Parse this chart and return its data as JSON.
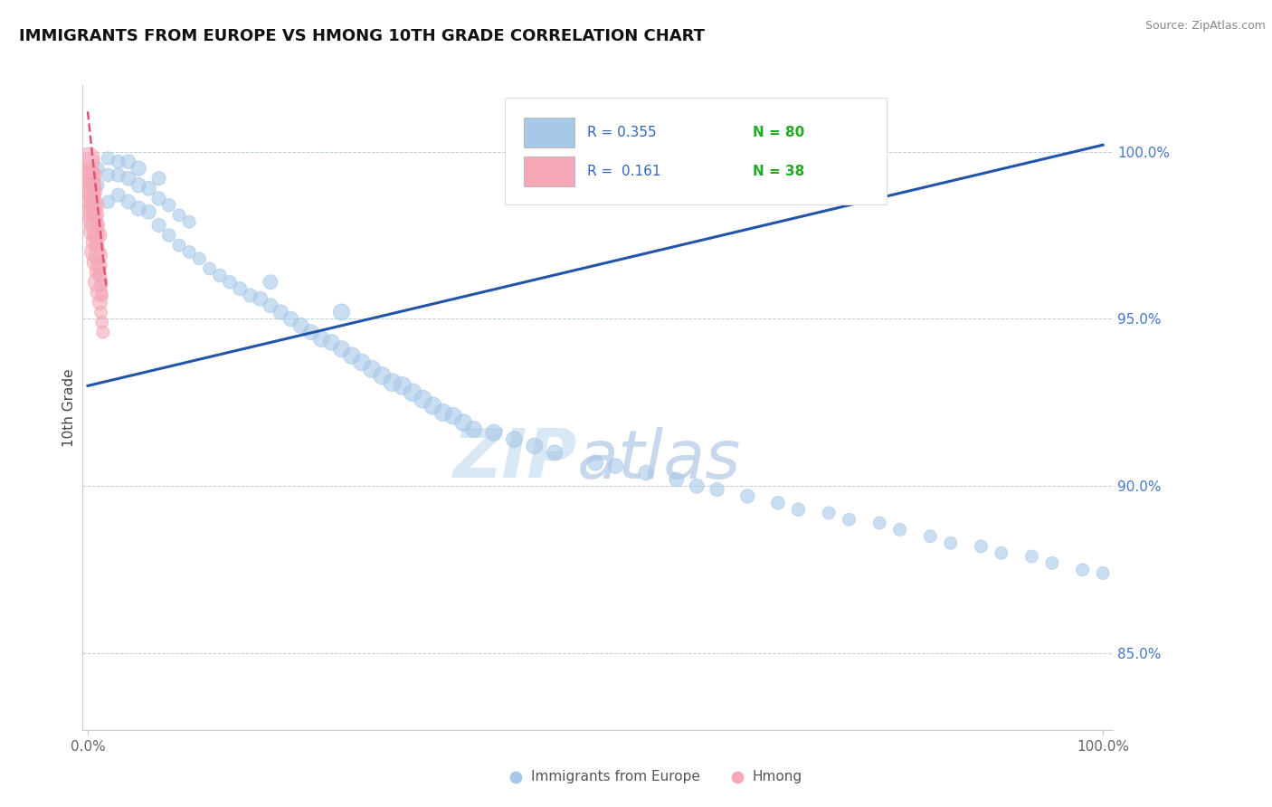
{
  "title": "IMMIGRANTS FROM EUROPE VS HMONG 10TH GRADE CORRELATION CHART",
  "source": "Source: ZipAtlas.com",
  "ylabel": "10th Grade",
  "y_axis_labels": [
    "85.0%",
    "90.0%",
    "95.0%",
    "100.0%"
  ],
  "y_axis_values": [
    0.85,
    0.9,
    0.95,
    1.0
  ],
  "legend_blue_r": "R = 0.355",
  "legend_blue_n": "N = 80",
  "legend_pink_r": "R =  0.161",
  "legend_pink_n": "N = 38",
  "blue_color": "#A8C8E8",
  "pink_color": "#F4A8B8",
  "trend_blue_color": "#2255AA",
  "trend_pink_color": "#DD5577",
  "watermark_color": "#D8E8F4",
  "blue_scatter_x": [
    0.01,
    0.01,
    0.02,
    0.02,
    0.02,
    0.03,
    0.03,
    0.03,
    0.04,
    0.04,
    0.04,
    0.05,
    0.05,
    0.05,
    0.06,
    0.06,
    0.07,
    0.07,
    0.07,
    0.08,
    0.08,
    0.09,
    0.09,
    0.1,
    0.1,
    0.11,
    0.12,
    0.13,
    0.14,
    0.15,
    0.16,
    0.17,
    0.18,
    0.18,
    0.19,
    0.2,
    0.21,
    0.22,
    0.23,
    0.24,
    0.25,
    0.25,
    0.26,
    0.27,
    0.28,
    0.29,
    0.3,
    0.31,
    0.32,
    0.33,
    0.34,
    0.35,
    0.36,
    0.37,
    0.38,
    0.4,
    0.42,
    0.44,
    0.46,
    0.5,
    0.52,
    0.55,
    0.58,
    0.6,
    0.62,
    0.65,
    0.68,
    0.7,
    0.73,
    0.75,
    0.78,
    0.8,
    0.83,
    0.85,
    0.88,
    0.9,
    0.93,
    0.95,
    0.98,
    1.0
  ],
  "blue_scatter_y": [
    0.99,
    0.995,
    0.985,
    0.993,
    0.998,
    0.987,
    0.993,
    0.997,
    0.985,
    0.992,
    0.997,
    0.983,
    0.99,
    0.995,
    0.982,
    0.989,
    0.978,
    0.986,
    0.992,
    0.975,
    0.984,
    0.972,
    0.981,
    0.97,
    0.979,
    0.968,
    0.965,
    0.963,
    0.961,
    0.959,
    0.957,
    0.956,
    0.954,
    0.961,
    0.952,
    0.95,
    0.948,
    0.946,
    0.944,
    0.943,
    0.941,
    0.952,
    0.939,
    0.937,
    0.935,
    0.933,
    0.931,
    0.93,
    0.928,
    0.926,
    0.924,
    0.922,
    0.921,
    0.919,
    0.917,
    0.916,
    0.914,
    0.912,
    0.91,
    0.907,
    0.906,
    0.904,
    0.902,
    0.9,
    0.899,
    0.897,
    0.895,
    0.893,
    0.892,
    0.89,
    0.889,
    0.887,
    0.885,
    0.883,
    0.882,
    0.88,
    0.879,
    0.877,
    0.875,
    0.874
  ],
  "blue_scatter_size": [
    100,
    100,
    110,
    110,
    110,
    120,
    120,
    120,
    130,
    130,
    130,
    140,
    140,
    140,
    130,
    130,
    120,
    120,
    120,
    110,
    110,
    100,
    100,
    100,
    100,
    100,
    100,
    110,
    110,
    120,
    120,
    130,
    130,
    130,
    140,
    140,
    150,
    150,
    160,
    160,
    170,
    170,
    180,
    180,
    190,
    190,
    200,
    200,
    200,
    200,
    190,
    190,
    180,
    180,
    170,
    170,
    160,
    160,
    150,
    150,
    140,
    140,
    130,
    130,
    120,
    120,
    110,
    110,
    100,
    100,
    100,
    100,
    100,
    100,
    100,
    100,
    100,
    100,
    100,
    100
  ],
  "pink_scatter_x": [
    0.001,
    0.001,
    0.002,
    0.002,
    0.002,
    0.003,
    0.003,
    0.003,
    0.004,
    0.004,
    0.004,
    0.005,
    0.005,
    0.005,
    0.006,
    0.006,
    0.006,
    0.007,
    0.007,
    0.007,
    0.008,
    0.008,
    0.008,
    0.009,
    0.009,
    0.009,
    0.01,
    0.01,
    0.01,
    0.011,
    0.011,
    0.012,
    0.012,
    0.013,
    0.013,
    0.014,
    0.014,
    0.015
  ],
  "pink_scatter_y": [
    0.998,
    0.993,
    0.988,
    0.982,
    0.997,
    0.985,
    0.991,
    0.994,
    0.98,
    0.988,
    0.993,
    0.976,
    0.984,
    0.99,
    0.973,
    0.981,
    0.987,
    0.97,
    0.978,
    0.984,
    0.967,
    0.975,
    0.981,
    0.964,
    0.972,
    0.978,
    0.961,
    0.969,
    0.975,
    0.958,
    0.966,
    0.955,
    0.963,
    0.952,
    0.96,
    0.949,
    0.957,
    0.946
  ],
  "pink_scatter_size": [
    300,
    280,
    260,
    240,
    220,
    200,
    180,
    160,
    280,
    260,
    240,
    220,
    200,
    180,
    160,
    140,
    120,
    260,
    240,
    220,
    200,
    180,
    160,
    140,
    120,
    100,
    240,
    220,
    200,
    180,
    160,
    140,
    120,
    100,
    100,
    100,
    100,
    100
  ],
  "blue_trend_x0": 0.0,
  "blue_trend_x1": 1.0,
  "blue_trend_y0": 0.93,
  "blue_trend_y1": 1.002,
  "pink_trend_x0": 0.0,
  "pink_trend_x1": 0.018,
  "pink_trend_y0": 1.012,
  "pink_trend_y1": 0.96,
  "xlim_min": -0.005,
  "xlim_max": 1.01,
  "ylim_min": 0.827,
  "ylim_max": 1.02
}
